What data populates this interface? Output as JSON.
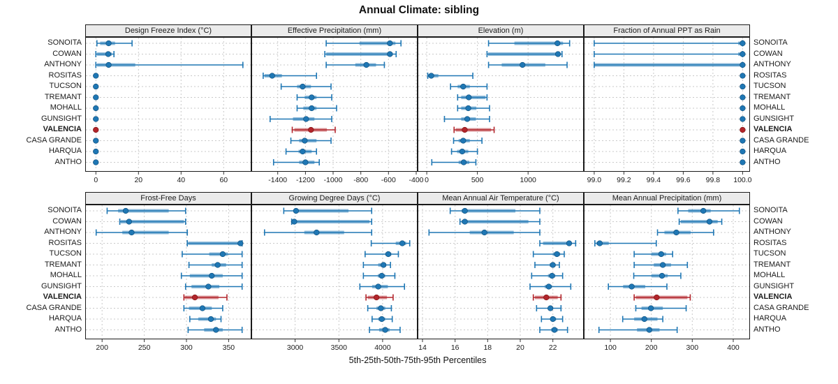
{
  "title": "Annual Climate: sibling",
  "xlabel": "5th-25th-50th-75th-95th Percentiles",
  "highlight_site": "VALENCIA",
  "colors": {
    "series": "#1F77B4",
    "series_dark": "#0E4D7A",
    "highlight": "#B2252B",
    "highlight_dark": "#7A1010",
    "grid": "#C9C9C9",
    "strip_bg": "#EBEBEB",
    "border": "#1A1A1A"
  },
  "sites": [
    "SONOITA",
    "COWAN",
    "ANTHONY",
    "ROSITAS",
    "TUCSON",
    "TREMANT",
    "MOHALL",
    "GUNSIGHT",
    "VALENCIA",
    "CASA GRANDE",
    "HARQUA",
    "ANTHO"
  ],
  "percentile_labels": [
    "5th",
    "25th",
    "50th",
    "75th",
    "95th"
  ],
  "chart_data": {
    "type": "dotplot-percentile-trellis",
    "legend_position": "none",
    "grid": "dashed",
    "rows": [
      [
        {
          "title": "Design Freeze Index (°C)",
          "xlim": [
            -5,
            73
          ],
          "ticks": [
            0,
            20,
            40,
            60
          ],
          "tick_labels": [
            "0",
            "20",
            "40",
            "60"
          ],
          "values": [
            [
              0.5,
              2,
              6,
              9,
              17
            ],
            [
              0,
              0.5,
              5.8,
              7.5,
              8.5
            ],
            [
              0,
              0.5,
              6,
              18.5,
              69
            ],
            [
              0,
              0,
              0,
              0,
              0
            ],
            [
              0,
              0,
              0,
              0,
              0
            ],
            [
              0,
              0,
              0,
              0,
              0
            ],
            [
              0,
              0,
              0,
              0,
              0
            ],
            [
              0,
              0,
              0,
              0,
              0
            ],
            [
              0,
              0,
              0,
              0,
              0
            ],
            [
              0,
              0,
              0,
              0,
              0
            ],
            [
              0,
              0,
              0,
              0,
              0
            ],
            [
              0,
              0,
              0,
              0,
              0
            ]
          ]
        },
        {
          "title": "Effective Precipitation (mm)",
          "xlim": [
            -1590,
            -390
          ],
          "ticks": [
            -1400,
            -1200,
            -1000,
            -800,
            -600,
            -400
          ],
          "tick_labels": [
            "-1400",
            "-1200",
            "-1000",
            "-800",
            "-600",
            "-400"
          ],
          "values": [
            [
              -1050,
              -810,
              -590,
              -550,
              -510
            ],
            [
              -1060,
              -1050,
              -590,
              -570,
              -545
            ],
            [
              -1050,
              -840,
              -760,
              -690,
              -630
            ],
            [
              -1505,
              -1495,
              -1440,
              -1370,
              -1120
            ],
            [
              -1375,
              -1260,
              -1220,
              -1160,
              -1015
            ],
            [
              -1260,
              -1205,
              -1155,
              -1120,
              -1010
            ],
            [
              -1260,
              -1215,
              -1155,
              -1120,
              -975
            ],
            [
              -1455,
              -1290,
              -1195,
              -1135,
              -1010
            ],
            [
              -1295,
              -1280,
              -1160,
              -1045,
              -985
            ],
            [
              -1305,
              -1245,
              -1205,
              -1120,
              -1015
            ],
            [
              -1340,
              -1250,
              -1220,
              -1155,
              -1120
            ],
            [
              -1430,
              -1245,
              -1200,
              -1135,
              -1100
            ]
          ]
        },
        {
          "title": "Elevation (m)",
          "xlim": [
            -90,
            1550
          ],
          "ticks": [
            0,
            500,
            1000
          ],
          "tick_labels": [
            "0",
            "500",
            "1000"
          ],
          "values": [
            [
              610,
              865,
              1290,
              1345,
              1410
            ],
            [
              595,
              605,
              1295,
              1320,
              1335
            ],
            [
              610,
              740,
              945,
              1170,
              1385
            ],
            [
              10,
              15,
              45,
              115,
              455
            ],
            [
              235,
              305,
              360,
              425,
              595
            ],
            [
              305,
              340,
              415,
              580,
              595
            ],
            [
              305,
              340,
              410,
              490,
              620
            ],
            [
              175,
              340,
              400,
              485,
              620
            ],
            [
              270,
              285,
              375,
              635,
              665
            ],
            [
              265,
              315,
              360,
              425,
              545
            ],
            [
              245,
              300,
              350,
              410,
              500
            ],
            [
              50,
              315,
              365,
              420,
              485
            ]
          ]
        },
        {
          "title": "Fraction of Annual PPT as Rain",
          "xlim": [
            98.93,
            100.05
          ],
          "ticks": [
            99.0,
            99.2,
            99.4,
            99.6,
            99.8,
            100.0
          ],
          "tick_labels": [
            "99.0",
            "99.2",
            "99.4",
            "99.6",
            "99.8",
            "100.0"
          ],
          "values": [
            [
              99.0,
              99.97,
              100,
              100,
              100
            ],
            [
              99.0,
              99.97,
              100,
              100,
              100
            ],
            [
              99.0,
              99.0,
              100,
              100,
              100
            ],
            [
              100,
              100,
              100,
              100,
              100
            ],
            [
              100,
              100,
              100,
              100,
              100
            ],
            [
              100,
              100,
              100,
              100,
              100
            ],
            [
              100,
              100,
              100,
              100,
              100
            ],
            [
              100,
              100,
              100,
              100,
              100
            ],
            [
              100,
              100,
              100,
              100,
              100
            ],
            [
              100,
              100,
              100,
              100,
              100
            ],
            [
              100,
              100,
              100,
              100,
              100
            ],
            [
              100,
              100,
              100,
              100,
              100
            ]
          ]
        }
      ],
      [
        {
          "title": "Frost-Free Days",
          "xlim": [
            180,
            377
          ],
          "ticks": [
            200,
            250,
            300,
            350
          ],
          "tick_labels": [
            "200",
            "250",
            "300",
            "350"
          ],
          "values": [
            [
              206,
              219,
              228,
              279,
              299
            ],
            [
              221,
              222,
              232,
              297,
              299
            ],
            [
              193,
              224,
              235,
              279,
              301
            ],
            [
              301,
              302,
              364,
              366,
              366
            ],
            [
              295,
              327,
              343,
              349,
              366
            ],
            [
              303,
              330,
              337,
              347,
              366
            ],
            [
              294,
              304,
              330,
              343,
              366
            ],
            [
              299,
              306,
              326,
              339,
              366
            ],
            [
              297,
              298,
              310,
              338,
              348
            ],
            [
              297,
              303,
              319,
              330,
              343
            ],
            [
              304,
              314,
              329,
              335,
              341
            ],
            [
              302,
              321,
              335,
              343,
              366
            ]
          ]
        },
        {
          "title": "Growing Degree Days (°C)",
          "xlim": [
            2500,
            4400
          ],
          "ticks": [
            3000,
            3500,
            4000
          ],
          "tick_labels": [
            "3000",
            "3500",
            "4000"
          ],
          "values": [
            [
              2870,
              2990,
              3010,
              3610,
              3875
            ],
            [
              2960,
              2975,
              2990,
              3850,
              3875
            ],
            [
              2650,
              3105,
              3245,
              3560,
              3875
            ],
            [
              3870,
              4150,
              4225,
              4270,
              4310
            ],
            [
              3800,
              4030,
              4065,
              4100,
              4180
            ],
            [
              3780,
              3950,
              4010,
              4040,
              4090
            ],
            [
              3780,
              3945,
              3990,
              4030,
              4140
            ],
            [
              3740,
              3880,
              3950,
              4060,
              4250
            ],
            [
              3810,
              3830,
              3930,
              4050,
              4120
            ],
            [
              3830,
              3930,
              3980,
              4030,
              4100
            ],
            [
              3880,
              3950,
              3990,
              4030,
              4110
            ],
            [
              3850,
              3960,
              4030,
              4080,
              4200
            ]
          ]
        },
        {
          "title": "Mean Annual Air Temperature (°C)",
          "xlim": [
            13.7,
            23.9
          ],
          "ticks": [
            14,
            16,
            18,
            20,
            22
          ],
          "tick_labels": [
            "14",
            "16",
            "18",
            "20",
            "22"
          ],
          "values": [
            [
              15.7,
              16.4,
              16.6,
              19.7,
              21.2
            ],
            [
              16.3,
              16.4,
              16.6,
              20.5,
              21.2
            ],
            [
              14.4,
              16.9,
              17.8,
              19.6,
              21.2
            ],
            [
              21.2,
              21.4,
              23.0,
              23.1,
              23.4
            ],
            [
              20.8,
              22.0,
              22.25,
              22.45,
              22.7
            ],
            [
              20.9,
              21.8,
              22.0,
              22.15,
              22.4
            ],
            [
              20.7,
              21.7,
              21.95,
              22.15,
              22.6
            ],
            [
              20.6,
              21.5,
              21.75,
              21.95,
              23.1
            ],
            [
              20.8,
              20.9,
              21.6,
              22.3,
              22.5
            ],
            [
              21.0,
              21.7,
              21.85,
              22.0,
              22.5
            ],
            [
              21.3,
              21.9,
              22.0,
              22.2,
              22.6
            ],
            [
              21.2,
              21.9,
              22.1,
              22.3,
              22.9
            ]
          ]
        },
        {
          "title": "Mean Annual Precipitation (mm)",
          "xlim": [
            35,
            441
          ],
          "ticks": [
            100,
            200,
            300,
            400
          ],
          "tick_labels": [
            "100",
            "200",
            "300",
            "400"
          ],
          "values": [
            [
              265,
              290,
              327,
              345,
              415
            ],
            [
              268,
              272,
              342,
              362,
              372
            ],
            [
              215,
              232,
              261,
              296,
              352
            ],
            [
              62,
              66,
              74,
              96,
              212
            ],
            [
              158,
              200,
              224,
              236,
              252
            ],
            [
              158,
              206,
              228,
              248,
              288
            ],
            [
              157,
              200,
              226,
              240,
              272
            ],
            [
              95,
              131,
              152,
              185,
              238
            ],
            [
              158,
              162,
              213,
              288,
              295
            ],
            [
              162,
              176,
              199,
              228,
              285
            ],
            [
              130,
              158,
              183,
              215,
              228
            ],
            [
              72,
              165,
              195,
              220,
              263
            ]
          ]
        }
      ]
    ]
  }
}
